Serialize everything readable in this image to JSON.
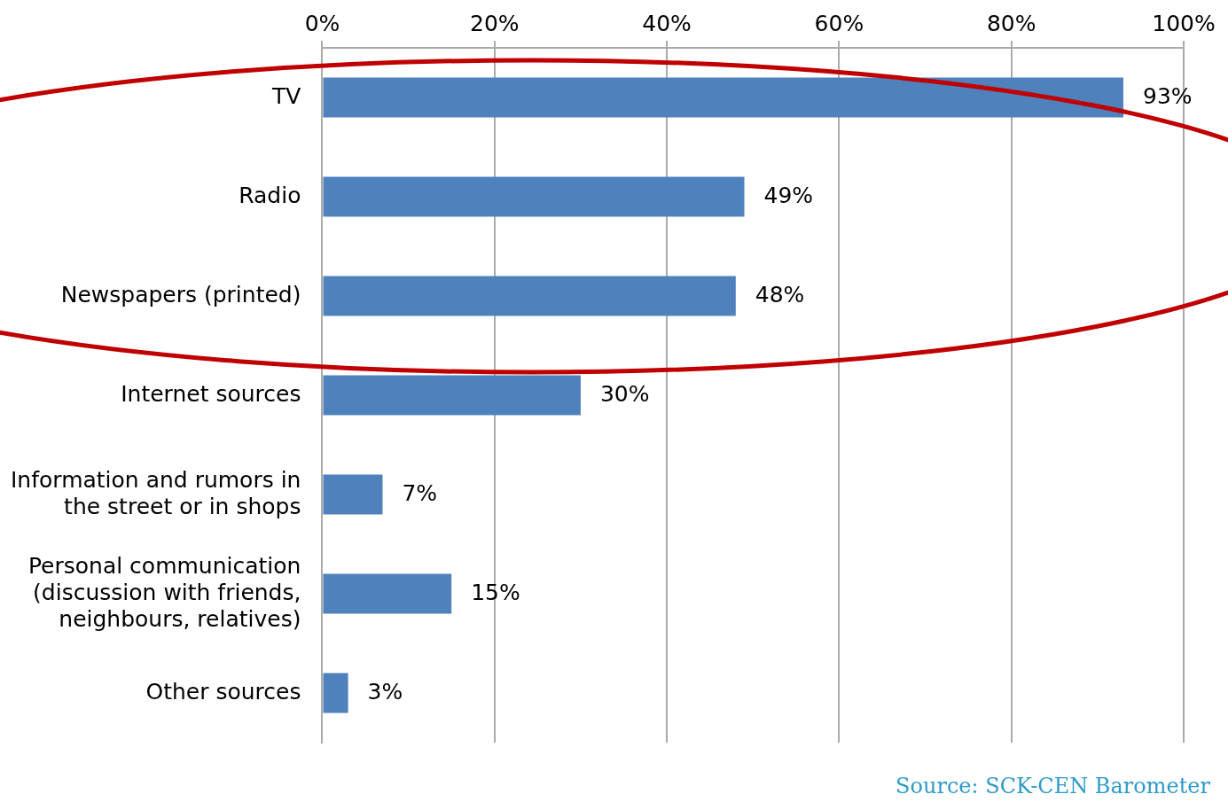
{
  "chart_data": {
    "type": "bar",
    "orientation": "horizontal",
    "categories": [
      "TV",
      "Radio",
      "Newspapers (printed)",
      "Internet sources",
      "Information and rumors in the street or in shops",
      "Personal communication (discussion with friends, neighbours, relatives)",
      "Other sources"
    ],
    "values": [
      93,
      49,
      48,
      30,
      7,
      15,
      3
    ],
    "value_labels": [
      "93%",
      "49%",
      "48%",
      "30%",
      "7%",
      "15%",
      "3%"
    ],
    "color": "#4f81bd",
    "xlim": [
      0,
      100
    ],
    "xticks": [
      {
        "value": 0,
        "label": "0%"
      },
      {
        "value": 20,
        "label": "20%"
      },
      {
        "value": 40,
        "label": "40%"
      },
      {
        "value": 60,
        "label": "60%"
      },
      {
        "value": 80,
        "label": "80%"
      },
      {
        "value": 100,
        "label": "100%"
      }
    ],
    "grid": "x",
    "legend": false,
    "annotations": [
      "Source: SCK-CEN Barometer"
    ]
  }
}
